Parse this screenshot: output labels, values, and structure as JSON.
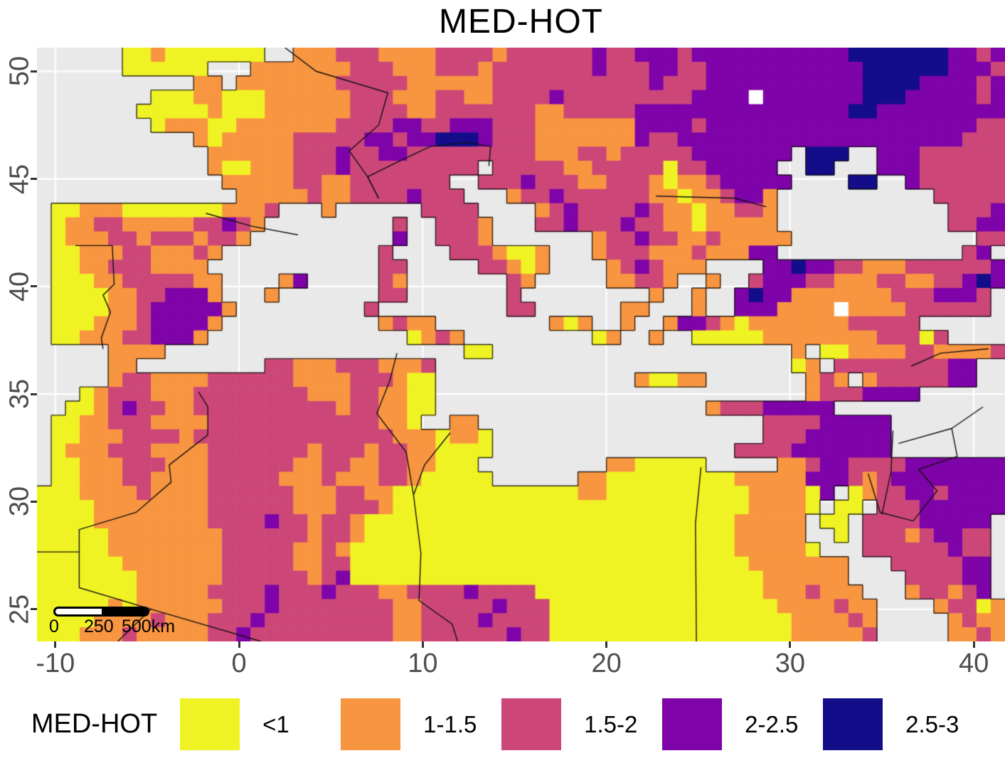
{
  "title": "MED-HOT",
  "axes": {
    "x_ticks": [
      {
        "label": "-10",
        "value": -10
      },
      {
        "label": "0",
        "value": 0
      },
      {
        "label": "10",
        "value": 10
      },
      {
        "label": "20",
        "value": 20
      },
      {
        "label": "30",
        "value": 30
      },
      {
        "label": "40",
        "value": 40
      }
    ],
    "y_ticks": [
      {
        "label": "25",
        "value": 25
      },
      {
        "label": "30",
        "value": 30
      },
      {
        "label": "35",
        "value": 35
      },
      {
        "label": "40",
        "value": 40
      },
      {
        "label": "45",
        "value": 45
      },
      {
        "label": "50",
        "value": 50
      }
    ],
    "lon_min": -11.0,
    "lon_max": 41.7,
    "lat_min": 23.5,
    "lat_max": 51.1
  },
  "legend": {
    "title": "MED-HOT",
    "items": [
      {
        "label": "<1",
        "color": "#f0f323"
      },
      {
        "label": "1-1.5",
        "color": "#f89540"
      },
      {
        "label": "1.5-2",
        "color": "#cc4778"
      },
      {
        "label": "2-2.5",
        "color": "#7e03a8"
      },
      {
        "label": "2.5-3",
        "color": "#140d8a"
      }
    ]
  },
  "scalebar": {
    "labels": [
      "0",
      "250",
      "500km"
    ]
  },
  "map": {
    "background": "#e9e9e9",
    "gridline_color": "#ffffff",
    "coast_color": "rgba(0,0,0,0.8)",
    "border_color": "#111111",
    "palette": {
      "Y": "#f0f323",
      "O": "#f89540",
      "P": "#cc4778",
      "U": "#7e03a8",
      "N": "#140d8a",
      "W": "#ffffff"
    },
    "cols": 68,
    "rows": 42,
    "grid_rows": [
      "......YYOYYYYYYY..OOOPPPOOOOPPPPOPPPPPPUPPUUUPUUUUUUUUUUUNNNNNNNUUPU",
      "......YYYYYY...OOOOOOOPPPOOOPPPOPPPPPPPUPPPUUPPUUUUUUUUUUUNNNNNNUUUP",
      "...........OO.OOOOOOOPPPPPOOOOOOPPPPPPPPPPPUPPPUUUUUUUUUUUNNNNUUUUPU",
      "........YYYOOYYYOOOOOOPPPOOOPPOOPPPPUPPPPPPPPPUUUUWUUUUUUUNNNUUUUUPU",
      ".......YYYYYOYYYOOOOOOPPPPOOPPPPPPPOOPPPPPUUUUUUUUUUUUUUUNNUUUUUUUUU",
      "........YOOOYYOOOOOOOPPPPUUPPUUUPPPOOOOOOOUUUUPUUUUUUUUUUUUUUUUUUUPP",
      "...........OYOOOOOPPPPPUUPUUNNNUPPPOOOOOOOUPPUUUUUUUUUUUUUUUUUUUUPPP",
      "............OOOOOOPPPUPPUUPPPPPPPPPOOOPPOPPPPPUUUUUUU.NNN..UUUPPPPPP",
      "............OYYOOOPPPUPPPPPPPPP.PPPPPOOPPPPPYPPUUUUU..NN...UUUPPPPPP",
      ".............OOOOOPPOOPPPPPPP..PPPUPPPOOPPPOYOOPUUUUU....NN..UPPPPPP",
      "..............OOOOOPOOPPPPUPPP...OPPUPPPPPPOOYOOPUUO...........PPPPP",
      ".YYOOOYYYYYYYOOOP...O......PPPP....OPUPPPPUPOOYOOPPO............PPPU",
      ".YOOPPOOOOOPPUPO.........P..PPPO...PPUPPPUPPOOYOOOOO............PPUU",
      ".YOOOPPOPPPOPPO..........U..PPPO.......OPPUPPOOPOOOOO.............PP",
      ".YYOOOPPOOOPO...........P....PPPOYYO...OPPPOOOPOOOUU.............PU",
      ".YYOOPPPOOOO............PP.....PPOYO....OPUPOOO....UUNUUPPOOOPPPPPPU",
      ".YYYOOPPPPPOO....OU.....PO.......PO.....OOPPO..O..PUUUPPOOOPPOOPPUNU",
      ".YYYYOOPPUUUO...O.......PP.......P.........O..O..UNUUOOOOOOOPPPUUUP",
      ".YYYYOOPUUUUUO.........P.........PP......OO...O..UUUOOOOWOOOOPPPPPP",
      ".YYYOOOPUUUUO...........OPOO........OYO..O..OUUPOYOOOOOOOPPPPP",
      ".YYOOOPPUUUO..............YOPO.........YO..O..YYYYYOOOOOOOOPPPYP",
      ".....OOOO.....................YY.....................O.YYOOOOPPOOOOPPO",
      ".....OO.........PPOOOPPPOOOP.........................YO.PPPPPPPPUU",
      ".....OPPOOOOPPPPPPOOOOPPPOYY..............OYYOO.......OPO.OPPPPPUU",
      "...YOPPPOOOPPPPPPPPOOOPPOOYY..........................OPPPUUUU",
      "..YYOPUPPOOPPPPPPPPPPOPPOOYY...................OPPPUUUUU",
      ".YYOOPPPOOOOPPPPPPPPPPPPOOY..OO....................PPPPUUUUU",
      ".YYOOOPPPPOPPPPPPPPPPPPPPOOOYOOY...................PPPUUUUUU",
      ".YOOOPPPOOOOPPPPPPPOPPPOPPOOYYYY.................PPPPUUUUUUU",
      ".YYOOOPPPOOOPPPPPPOOPPOOPPOOYYY.........OOYYYYY.....OOPUUPPPPUUUUUUU",
      ".YYOOOPPOOOOPPPPPOOOPOOOPPOYYYYY......OOYYYYYYYYYOOOOOUUUPOPUUUUUUUU",
      "YYYOOOOPOOOOPPPPPPOOOPPOOYYYYYYYYYYYYYOOYYYYYYYYYYOOOOYU.YOPPUUPUUUU",
      "YYYYOOOOOOOOPPPPPPOOOPPPOYYYYYYYYYYYYYYYYYYYYYYYYYOOOOY.YY.PPPUUUUUU",
      "YYYYOOOOOOOOPPPPUPPOPPOYYYYYYYYYYYYYYYYYYYYYYYYYYOOOOO.YY.PPPPUUUUU",
      "YYYYYOOOOOOOOPPPPPPOPPOYYYYYYYYYYYYYYYYYYYYYYYYYYOOOOO..Y.PPPOPUUPP",
      "YYYYYOOOOOOOOPPPPPOOPOYYYYYYYYYYYYYYYYYYYYYYYYYYYOOOOOY...PPPPPPUPP",
      "YYYYYYOOOOOOOPPPPPOOPPYYYYYYYYYYYYYYYYYYYYYYYYYYYYOOOOOOO...PPPPPUU",
      "YYYYYYYOOOOOOPPPPPPOPUYYYYYYYYYYYYYYYYYYYYYYYYYYYYYOOOOOO....PPPPUU",
      "YYYYYYYOOOOOPPPPUPPPUPPPOOPPPPUPPPPYYYYYYYYYYYYYYYYOOOPOOO...OPPOPU",
      "YYYYYOYOOOOOOPPPUPPPPPPPPOOPPPPPUPPPYYYYYYYYYYYYYYYYOOOOPOO....OPPYO",
      "YYYYOOOOPOOOPPPUPPPPPPPPPOOPPPPUPPPPYYYYYYYYYYYYYYYYYOOOOPO.....OPOO",
      "YYYOOOPOOOOOPPUPPPPPPPPPPOOPPPPPPUPPYYYYYYYYYYYYYYYYYOOOOOP.....OOPO"
    ],
    "borders": [
      [
        [
          -8.9,
          41.9
        ],
        [
          -6.9,
          41.9
        ],
        [
          -6.8,
          40.1
        ],
        [
          -7.4,
          39.6
        ],
        [
          -7.0,
          38.8
        ],
        [
          -7.5,
          37.6
        ],
        [
          -7.4,
          37.1
        ]
      ],
      [
        [
          -1.8,
          43.4
        ],
        [
          0.7,
          42.8
        ],
        [
          3.2,
          42.4
        ]
      ],
      [
        [
          2.5,
          51.1
        ],
        [
          4.2,
          50.0
        ],
        [
          8.1,
          49.0
        ],
        [
          7.6,
          47.5
        ],
        [
          6.0,
          46.3
        ],
        [
          7.0,
          45.1
        ],
        [
          7.6,
          44.1
        ]
      ],
      [
        [
          7.6,
          44.1
        ],
        [
          7.0,
          45.1
        ],
        [
          8.9,
          45.9
        ],
        [
          10.4,
          46.5
        ],
        [
          12.4,
          46.7
        ],
        [
          13.7,
          46.5
        ],
        [
          13.6,
          45.6
        ]
      ],
      [
        [
          -2.2,
          35.1
        ],
        [
          -1.7,
          34.4
        ],
        [
          -1.7,
          33.1
        ],
        [
          -3.8,
          31.7
        ],
        [
          -3.7,
          30.9
        ],
        [
          -5.6,
          29.5
        ],
        [
          -8.7,
          28.7
        ],
        [
          -8.7,
          27.66
        ]
      ],
      [
        [
          -11.0,
          27.66
        ],
        [
          -8.7,
          27.66
        ],
        [
          -8.7,
          26.0
        ],
        [
          -4.8,
          25.0
        ],
        [
          -6.6,
          23.5
        ]
      ],
      [
        [
          -4.8,
          25.0
        ],
        [
          1.2,
          23.5
        ]
      ],
      [
        [
          8.6,
          36.9
        ],
        [
          8.2,
          35.6
        ],
        [
          7.5,
          34.1
        ],
        [
          9.1,
          32.3
        ],
        [
          9.5,
          30.3
        ]
      ],
      [
        [
          11.5,
          33.2
        ],
        [
          10.1,
          31.7
        ],
        [
          9.5,
          30.3
        ]
      ],
      [
        [
          9.5,
          30.3
        ],
        [
          9.9,
          27.6
        ],
        [
          9.8,
          25.4
        ],
        [
          11.6,
          24.3
        ],
        [
          11.9,
          23.5
        ]
      ],
      [
        [
          25.15,
          31.6
        ],
        [
          24.85,
          29.0
        ],
        [
          24.9,
          23.5
        ]
      ],
      [
        [
          34.25,
          31.3
        ],
        [
          34.9,
          29.5
        ]
      ],
      [
        [
          35.6,
          33.3
        ],
        [
          35.55,
          32.4
        ],
        [
          35.5,
          31.4
        ],
        [
          35.0,
          29.4
        ]
      ],
      [
        [
          34.9,
          29.5
        ],
        [
          36.7,
          29.1
        ],
        [
          38.0,
          30.5
        ],
        [
          37.0,
          31.5
        ],
        [
          39.1,
          32.1
        ],
        [
          38.8,
          33.4
        ],
        [
          35.9,
          32.7
        ]
      ],
      [
        [
          36.6,
          36.3
        ],
        [
          38.2,
          36.9
        ],
        [
          40.8,
          37.1
        ]
      ],
      [
        [
          38.8,
          33.4
        ],
        [
          40.5,
          34.4
        ]
      ],
      [
        [
          22.7,
          44.2
        ],
        [
          27.0,
          44.1
        ],
        [
          28.7,
          43.7
        ]
      ]
    ]
  }
}
